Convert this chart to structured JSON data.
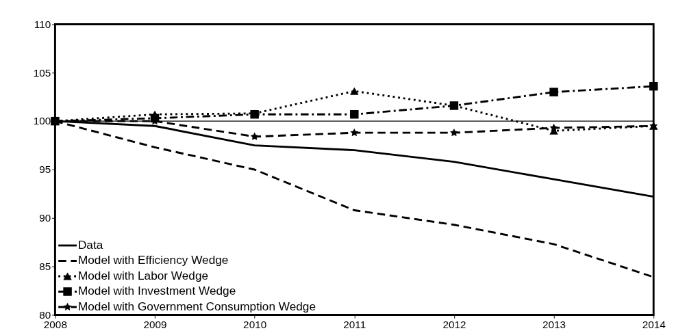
{
  "chart_data": {
    "type": "line",
    "x": [
      2008,
      2009,
      2010,
      2011,
      2012,
      2013,
      2014
    ],
    "xlim": [
      2008,
      2014
    ],
    "xticks": [
      2008,
      2009,
      2010,
      2011,
      2012,
      2013,
      2014
    ],
    "ylim": [
      80,
      110
    ],
    "yticks": [
      80,
      85,
      90,
      95,
      100,
      105,
      110
    ],
    "grid": false,
    "legend": "bottom left",
    "ref_lines": [
      {
        "axis": "y",
        "value": 100,
        "color": "#000000",
        "line_style": "solid"
      }
    ],
    "series": [
      {
        "name": "Data",
        "color": "#000000",
        "line_style": "solid",
        "marker": "none",
        "values": [
          100,
          99.5,
          97.5,
          97.0,
          95.8,
          94.0,
          92.2
        ]
      },
      {
        "name": "Model with Efficiency Wedge",
        "color": "#000000",
        "line_style": "dashed",
        "marker": "none",
        "values": [
          100,
          97.3,
          95.0,
          90.8,
          89.3,
          87.3,
          83.9
        ]
      },
      {
        "name": "Model with Labor Wedge",
        "color": "#000000",
        "line_style": "dotted",
        "marker": "triangle",
        "values": [
          100,
          100.7,
          100.8,
          103.1,
          101.6,
          99.0,
          99.5
        ]
      },
      {
        "name": "Model with Investment Wedge",
        "color": "#000000",
        "line_style": "dashdot",
        "marker": "square",
        "values": [
          100,
          100.3,
          100.7,
          100.7,
          101.6,
          103.0,
          103.6
        ]
      },
      {
        "name": "Model with Government Consumption Wedge",
        "color": "#000000",
        "line_style": "dashed",
        "marker": "star",
        "values": [
          100,
          100.0,
          98.4,
          98.8,
          98.8,
          99.3,
          99.5
        ]
      }
    ]
  }
}
